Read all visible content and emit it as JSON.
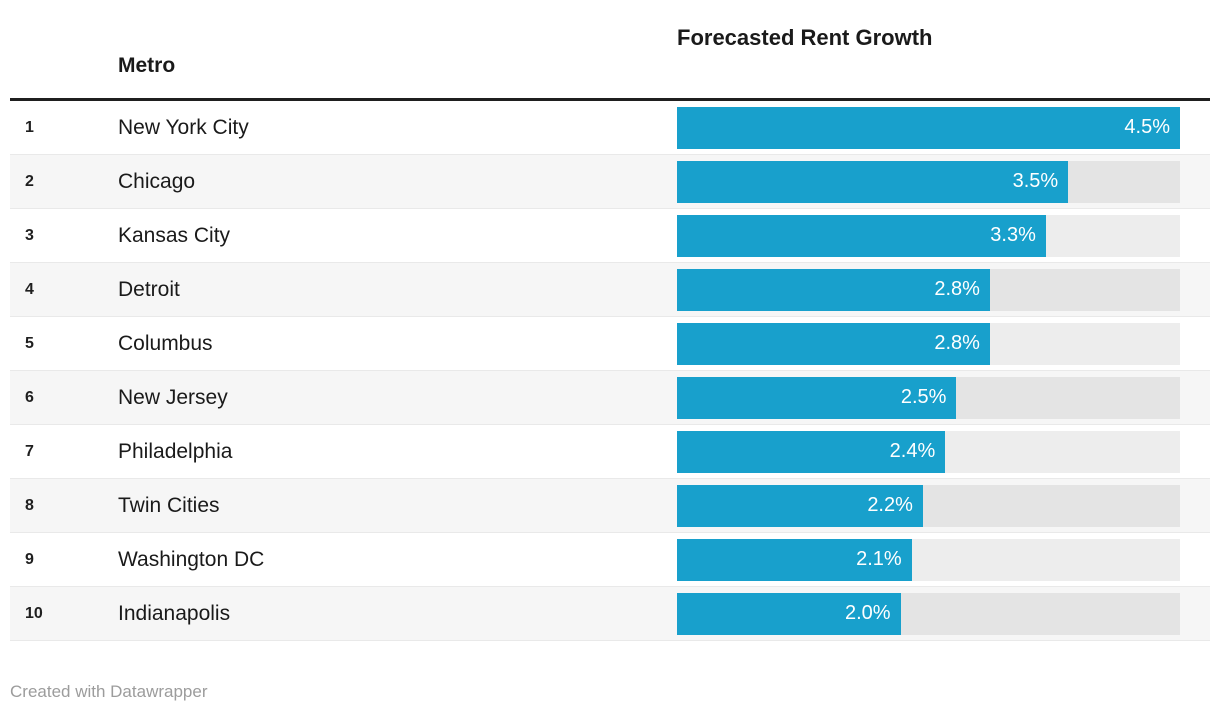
{
  "table": {
    "header": {
      "metro": "Metro",
      "growth": "Forecasted Rent Growth"
    }
  },
  "footer": {
    "credit": "Created with Datawrapper"
  },
  "colors": {
    "bar": "#18a0cc",
    "bar_track": "rgba(0,0,0,0.07)",
    "row_stripe": "#f6f6f6",
    "header_rule": "#1f1f1f",
    "text": "#1a1a1a",
    "value_label_text": "#ffffff",
    "footer_text": "#9c9c9c"
  },
  "chart_data": {
    "type": "bar",
    "title": "",
    "xlabel": "Forecasted Rent Growth",
    "ylabel": "Metro",
    "xlim": [
      0,
      4.5
    ],
    "grid": false,
    "legend": false,
    "orientation": "horizontal",
    "value_labels_position": "inside-end",
    "ranks": [
      1,
      2,
      3,
      4,
      5,
      6,
      7,
      8,
      9,
      10
    ],
    "categories": [
      "New York City",
      "Chicago",
      "Kansas City",
      "Detroit",
      "Columbus",
      "New Jersey",
      "Philadelphia",
      "Twin Cities",
      "Washington DC",
      "Indianapolis"
    ],
    "values": [
      4.5,
      3.5,
      3.3,
      2.8,
      2.8,
      2.5,
      2.4,
      2.2,
      2.1,
      2.0
    ],
    "labels": [
      "4.5%",
      "3.5%",
      "3.3%",
      "2.8%",
      "2.8%",
      "2.5%",
      "2.4%",
      "2.2%",
      "2.1%",
      "2.0%"
    ]
  }
}
